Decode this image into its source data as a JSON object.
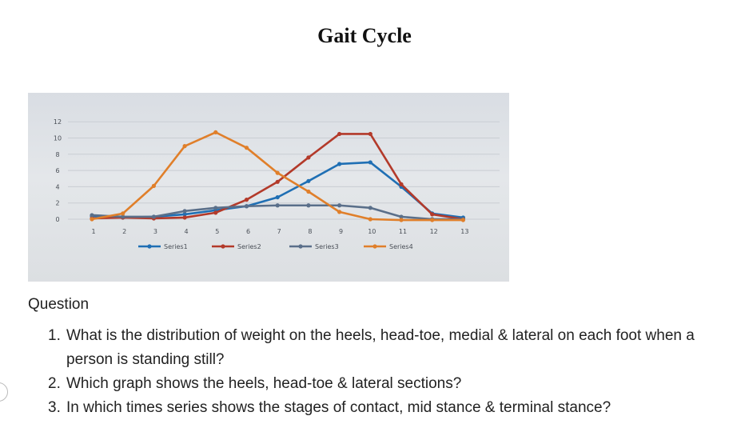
{
  "slide": {
    "title": "Gait Cycle"
  },
  "chart_data": {
    "type": "line",
    "categories": [
      "1",
      "2",
      "3",
      "4",
      "5",
      "6",
      "7",
      "8",
      "9",
      "10",
      "11",
      "12",
      "13"
    ],
    "y_ticks": [
      "12",
      "10",
      "8",
      "6",
      "4",
      "2",
      "0"
    ],
    "ylim": [
      0,
      12
    ],
    "grid": true,
    "legend_position": "bottom",
    "series": [
      {
        "name": "Series1",
        "color": "#1f6fb4",
        "values": [
          0.4,
          0.2,
          0.3,
          0.6,
          1.1,
          1.6,
          2.7,
          4.7,
          6.8,
          7.0,
          4.0,
          0.7,
          0.2
        ]
      },
      {
        "name": "Series2",
        "color": "#b33a2a",
        "values": [
          0.1,
          0.2,
          0.1,
          0.2,
          0.8,
          2.4,
          4.6,
          7.6,
          10.5,
          10.5,
          4.3,
          0.6,
          0.0
        ]
      },
      {
        "name": "Series3",
        "color": "#5a6f8a",
        "values": [
          0.5,
          0.3,
          0.3,
          1.0,
          1.4,
          1.6,
          1.7,
          1.7,
          1.7,
          1.4,
          0.3,
          0.0,
          0.0
        ]
      },
      {
        "name": "Series4",
        "color": "#e07f2a",
        "values": [
          0.0,
          0.7,
          4.1,
          9.0,
          10.7,
          8.8,
          5.7,
          3.4,
          0.9,
          0.0,
          -0.1,
          -0.1,
          -0.1
        ]
      }
    ]
  },
  "questions": {
    "heading": "Question",
    "items": [
      {
        "num": "1.",
        "text": "What is the distribution of weight on the heels, head-toe, medial & lateral on each foot when a person is standing still?"
      },
      {
        "num": "2.",
        "text": "Which graph shows the heels, head-toe & lateral sections?"
      },
      {
        "num": "3.",
        "text": "In which times series shows the stages of contact, mid stance & terminal stance?"
      }
    ]
  }
}
